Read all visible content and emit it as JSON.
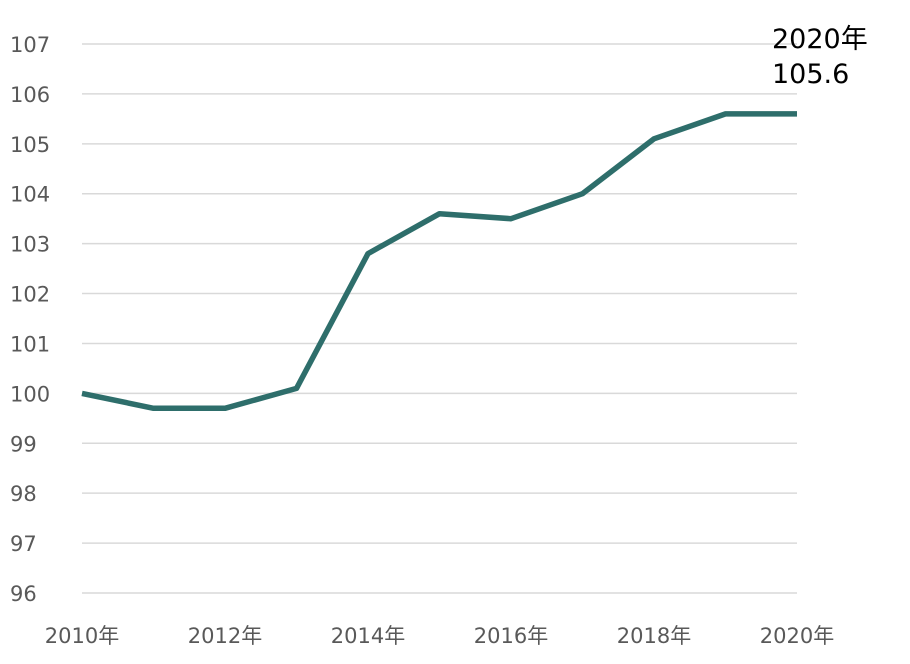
{
  "chart_data": {
    "type": "line",
    "title": "",
    "xlabel": "",
    "ylabel": "",
    "x": [
      2010,
      2011,
      2012,
      2013,
      2014,
      2015,
      2016,
      2017,
      2018,
      2019,
      2020
    ],
    "x_tick_labels": [
      "2010年",
      "2012年",
      "2014年",
      "2016年",
      "2018年",
      "2020年"
    ],
    "y_ticks": [
      96,
      97,
      98,
      99,
      100,
      101,
      102,
      103,
      104,
      105,
      106,
      107
    ],
    "ylim": [
      96,
      107
    ],
    "grid": true,
    "legend": "none",
    "series": [
      {
        "values": [
          100.0,
          99.7,
          99.7,
          100.1,
          102.8,
          103.6,
          103.5,
          104.0,
          105.1,
          105.6,
          105.6
        ],
        "color": "#2e6e6b"
      }
    ],
    "annotation": {
      "line1": "2020年",
      "line2": "105.6"
    }
  }
}
